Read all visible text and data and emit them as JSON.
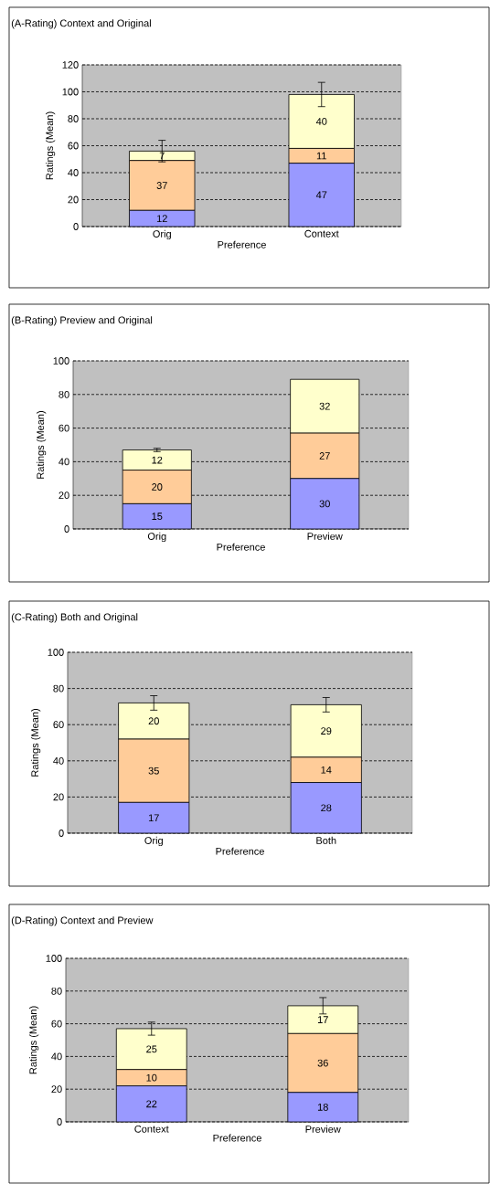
{
  "chart_data": [
    {
      "type": "bar",
      "title": "(A-Rating) Context and Original",
      "xlabel": "Preference",
      "ylabel": "Ratings (Mean)",
      "categories": [
        "Orig",
        "Context"
      ],
      "stacked": true,
      "data_labels": true,
      "grid": "y",
      "ylim": [
        0,
        120
      ],
      "yticks": [
        0,
        20,
        40,
        60,
        80,
        100,
        120
      ],
      "series": [
        {
          "color": "#9999ff",
          "values": [
            12,
            47
          ]
        },
        {
          "color": "#ffcc99",
          "values": [
            37,
            11
          ]
        },
        {
          "color": "#ffffcc",
          "values": [
            7,
            40
          ],
          "errors": [
            8,
            9
          ]
        }
      ]
    },
    {
      "type": "bar",
      "title": "(B-Rating) Preview and Original",
      "xlabel": "Preference",
      "ylabel": "Ratings (Mean)",
      "categories": [
        "Orig",
        "Preview"
      ],
      "stacked": true,
      "data_labels": true,
      "grid": "y",
      "ylim": [
        0,
        100
      ],
      "yticks": [
        0,
        20,
        40,
        60,
        80,
        100
      ],
      "series": [
        {
          "color": "#9999ff",
          "values": [
            15,
            30
          ]
        },
        {
          "color": "#ffcc99",
          "values": [
            20,
            27
          ]
        },
        {
          "color": "#ffffcc",
          "values": [
            12,
            32
          ],
          "errors": [
            1,
            null
          ]
        }
      ]
    },
    {
      "type": "bar",
      "title": "(C-Rating) Both and Original",
      "xlabel": "Preference",
      "ylabel": "Ratings (Mean)",
      "categories": [
        "Orig",
        "Both"
      ],
      "stacked": true,
      "data_labels": true,
      "grid": "y",
      "ylim": [
        0,
        100
      ],
      "yticks": [
        0,
        20,
        40,
        60,
        80,
        100
      ],
      "series": [
        {
          "color": "#9999ff",
          "values": [
            17,
            28
          ]
        },
        {
          "color": "#ffcc99",
          "values": [
            35,
            14
          ]
        },
        {
          "color": "#ffffcc",
          "values": [
            20,
            29
          ],
          "errors": [
            4,
            4
          ]
        }
      ]
    },
    {
      "type": "bar",
      "title": "(D-Rating) Context and Preview",
      "xlabel": "Preference",
      "ylabel": "Ratings (Mean)",
      "categories": [
        "Context",
        "Preview"
      ],
      "stacked": true,
      "data_labels": true,
      "grid": "y",
      "ylim": [
        0,
        100
      ],
      "yticks": [
        0,
        20,
        40,
        60,
        80,
        100
      ],
      "series": [
        {
          "color": "#9999ff",
          "values": [
            22,
            18
          ]
        },
        {
          "color": "#ffcc99",
          "values": [
            10,
            36
          ]
        },
        {
          "color": "#ffffcc",
          "values": [
            25,
            17
          ],
          "errors": [
            4,
            5
          ]
        }
      ]
    }
  ]
}
